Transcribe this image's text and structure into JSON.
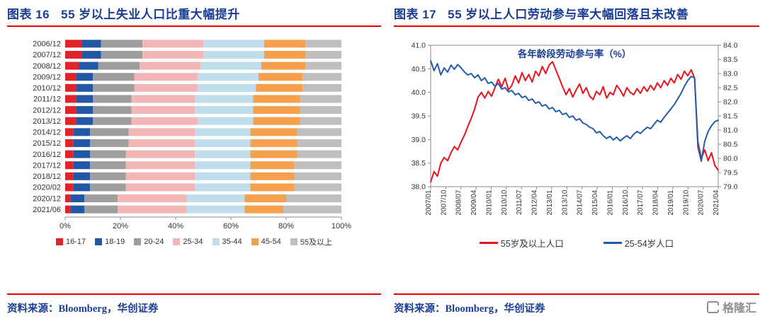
{
  "figures": [
    {
      "label": "图表 16",
      "title": "55 岁以上失业人口比重大幅提升",
      "source": "资料来源：Bloomberg，华创证券"
    },
    {
      "label": "图表 17",
      "title": "55 岁以上人口劳动参与率大幅回落且未改善",
      "source": "资料来源：Bloomberg，华创证券"
    }
  ],
  "logo": {
    "text": "格隆汇"
  },
  "colors": {
    "header_text": "#1b3e94",
    "rule_red": "#e60000",
    "source_text": "#1b3e94",
    "logo_gray": "#8f8f8f"
  },
  "chart_data": [
    {
      "type": "bar",
      "variant": "stacked-horizontal-100pct",
      "title": "55 岁以上失业人口比重大幅提升",
      "xlabel": "",
      "ylabel": "",
      "xlim": [
        0,
        100
      ],
      "x_ticks": [
        "0%",
        "20%",
        "40%",
        "60%",
        "80%",
        "100%"
      ],
      "categories": [
        "2006/12",
        "2007/12",
        "2008/12",
        "2009/12",
        "2010/12",
        "2011/12",
        "2012/12",
        "2013/12",
        "2014/12",
        "2015/12",
        "2016/12",
        "2017/12",
        "2018/12",
        "2020/02",
        "2020/12",
        "2021/06"
      ],
      "series": [
        {
          "name": "16-17",
          "color": "#e02229",
          "values": [
            6,
            6,
            5,
            4,
            4,
            4,
            4,
            4,
            3,
            3,
            3,
            3,
            3,
            3,
            2,
            2
          ]
        },
        {
          "name": "18-19",
          "color": "#2257a5",
          "values": [
            7,
            7,
            7,
            6,
            6,
            6,
            6,
            6,
            6,
            6,
            6,
            6,
            6,
            6,
            5,
            5
          ]
        },
        {
          "name": "20-24",
          "color": "#9e9e9e",
          "values": [
            15,
            15,
            15,
            15,
            15,
            14,
            14,
            14,
            14,
            14,
            13,
            13,
            13,
            13,
            12,
            12
          ]
        },
        {
          "name": "25-34",
          "color": "#f3b6b6",
          "values": [
            22,
            22,
            22,
            23,
            23,
            23,
            23,
            24,
            24,
            24,
            25,
            25,
            25,
            25,
            25,
            25
          ]
        },
        {
          "name": "35-44",
          "color": "#bfdded",
          "values": [
            22,
            22,
            22,
            22,
            21,
            21,
            21,
            20,
            20,
            20,
            20,
            20,
            20,
            20,
            21,
            21
          ]
        },
        {
          "name": "45-54",
          "color": "#f5a04c",
          "values": [
            15,
            15,
            16,
            16,
            17,
            17,
            17,
            17,
            17,
            17,
            17,
            16,
            16,
            16,
            15,
            14
          ]
        },
        {
          "name": "55及以上",
          "color": "#bfbfbf",
          "values": [
            13,
            13,
            13,
            14,
            14,
            15,
            15,
            15,
            16,
            16,
            16,
            17,
            17,
            17,
            20,
            21
          ]
        }
      ],
      "legend_position": "bottom",
      "grid": false
    },
    {
      "type": "line",
      "title": "各年龄段劳动参与率（%）",
      "xlabel": "",
      "ylabel": "",
      "x_ticks": [
        "2007/01",
        "2007/10",
        "2008/07",
        "2009/04",
        "2010/01",
        "2010/10",
        "2011/07",
        "2012/04",
        "2013/01",
        "2013/10",
        "2014/07",
        "2015/04",
        "2016/01",
        "2016/10",
        "2017/07",
        "2018/04",
        "2019/01",
        "2019/10",
        "2020/07",
        "2021/04"
      ],
      "left_axis": {
        "min": 38,
        "max": 41,
        "ticks": [
          "38.0",
          "38.5",
          "39.0",
          "39.5",
          "40.0",
          "40.5",
          "41.0"
        ]
      },
      "right_axis": {
        "min": 79,
        "max": 84,
        "ticks": [
          "79.0",
          "79.5",
          "80.0",
          "80.5",
          "81.0",
          "81.5",
          "82.0",
          "82.5",
          "83.0",
          "83.5",
          "84.0"
        ]
      },
      "series": [
        {
          "name": "55岁及以上人口",
          "color": "#e8131d",
          "axis": "left",
          "values": [
            38.1,
            38.32,
            38.22,
            38.5,
            38.62,
            38.55,
            38.72,
            38.85,
            38.78,
            38.95,
            39.1,
            39.28,
            39.45,
            39.65,
            39.9,
            40.0,
            39.88,
            40.02,
            39.92,
            40.1,
            40.28,
            40.12,
            40.3,
            40.05,
            40.15,
            40.35,
            40.2,
            40.42,
            40.25,
            40.38,
            40.22,
            40.45,
            40.35,
            40.55,
            40.4,
            40.58,
            40.65,
            40.48,
            40.3,
            40.12,
            39.95,
            40.08,
            39.9,
            40.05,
            40.18,
            39.98,
            40.1,
            39.92,
            39.85,
            40.02,
            39.95,
            40.12,
            39.88,
            40.0,
            39.95,
            40.15,
            40.05,
            39.92,
            40.1,
            40.0,
            39.95,
            40.08,
            39.98,
            40.12,
            40.02,
            40.15,
            40.05,
            40.2,
            40.1,
            40.25,
            40.15,
            40.3,
            40.2,
            40.38,
            40.28,
            40.45,
            40.35,
            40.48,
            40.3,
            38.95,
            38.6,
            38.78,
            38.55,
            38.72,
            38.45,
            38.35
          ]
        },
        {
          "name": "25-54岁人口",
          "color": "#1f5ca9",
          "axis": "right",
          "values": [
            83.45,
            83.1,
            83.35,
            82.95,
            83.2,
            83.05,
            83.3,
            83.15,
            83.32,
            83.2,
            83.05,
            82.95,
            83.0,
            82.85,
            82.95,
            82.75,
            82.85,
            82.65,
            82.7,
            82.55,
            82.65,
            82.45,
            82.5,
            82.35,
            82.4,
            82.25,
            82.3,
            82.15,
            82.2,
            82.05,
            82.1,
            81.95,
            82.0,
            81.85,
            81.9,
            81.75,
            81.8,
            81.65,
            81.7,
            81.55,
            81.6,
            81.45,
            81.5,
            81.35,
            81.4,
            81.25,
            81.2,
            81.1,
            81.05,
            80.9,
            80.95,
            80.8,
            80.7,
            80.78,
            80.65,
            80.75,
            80.62,
            80.72,
            80.8,
            80.7,
            80.85,
            80.95,
            80.88,
            81.0,
            81.1,
            81.05,
            81.2,
            81.35,
            81.28,
            81.45,
            81.6,
            81.75,
            81.9,
            82.1,
            82.3,
            82.55,
            82.75,
            82.9,
            82.85,
            80.4,
            79.9,
            80.6,
            80.95,
            81.15,
            81.3,
            81.35
          ]
        }
      ],
      "legend_position": "bottom",
      "grid": false
    }
  ]
}
